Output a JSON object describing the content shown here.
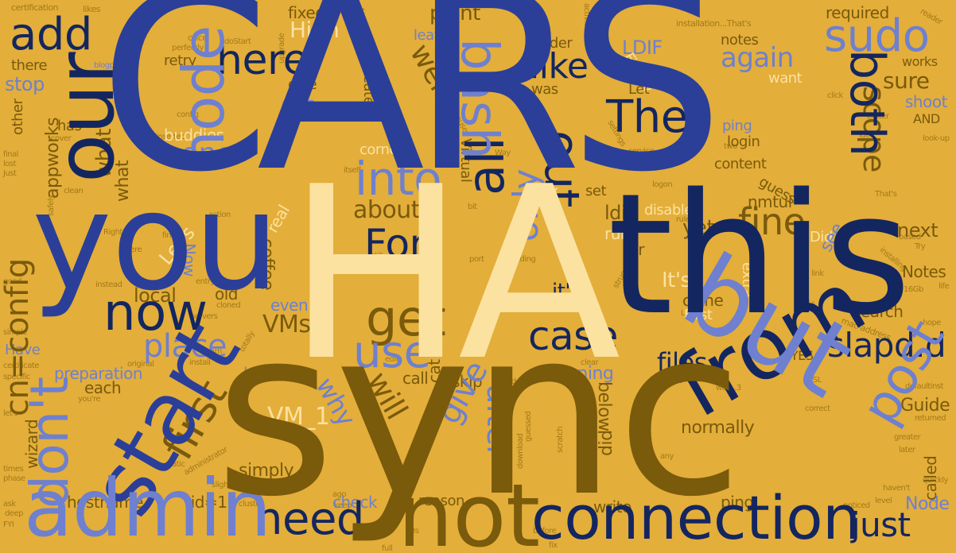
{
  "colors": {
    "background": "#E3AE3A",
    "royal_blue": "#2B3F98",
    "navy": "#142660",
    "cream": "#FBE2A0",
    "olive": "#7A5A0B",
    "periwinkle": "#6E80CF",
    "gold": "#A47A17"
  },
  "words": {
    "cars": "CARS",
    "ha": "HA",
    "sync": "sync",
    "you": "you",
    "this": "this",
    "but": "but",
    "our": "our",
    "start": "start",
    "admin": "admin",
    "from": "from",
    "connection": "connection",
    "not": "not",
    "node": "node",
    "bash": "bash",
    "post": "post",
    "dont": "don't",
    "now": "now",
    "cn_config": "cn=config",
    "get": "get",
    "use": "use",
    "slapd_d": "slapd.d",
    "the": "The",
    "both": "both",
    "sudo": "sudo",
    "add": "add",
    "here": "here",
    "into": "into",
    "for": "For",
    "all": "all",
    "out": "out",
    "scope": "scope",
    "again": "again",
    "first": "first",
    "need": "need",
    "case": "case",
    "give": "give",
    "after": "after",
    "only": "only",
    "like": "like",
    "one": "one",
    "fine": "fine",
    "just": "just",
    "place": "place",
    "vms": "VMs",
    "files": "files",
    "point": "point",
    "high": "High",
    "ldif_caps": "LDIF",
    "fixed": "fixed",
    "leave": "leave",
    "well": "well",
    "stop": "stop",
    "appworks": "appworks",
    "what": "what",
    "buddies": "buddies",
    "vm_1": "VM_1",
    "will": "will",
    "why": "why",
    "its": "It's",
    "its2": "it's",
    "about": "about",
    "yet": "yet",
    "ldif": "ldif",
    "nmtui": "nmtui",
    "next": "next",
    "see": "see",
    "notes_cap": "Notes",
    "search": "search",
    "guide": "Guide",
    "node_cap": "Node",
    "called": "called",
    "ping": "ping",
    "normally": "normally",
    "reason": "reason",
    "write": "write",
    "check": "check",
    "hostname": "hostname",
    "rid": "rid=1",
    "simply": "simply",
    "wizard": "wizard",
    "preparation": "preparation",
    "each": "each",
    "have": "Have",
    "location": "location",
    "running": "running",
    "coffee": "coffee",
    "real": "real",
    "clone": "clone",
    "extra": "extra",
    "did": "did",
    "below": "below",
    "call": "call",
    "skip": "skip",
    "cat": "cat",
    "yes": "YES",
    "sure": "sure",
    "shoot": "shoot",
    "and": "AND",
    "works": "works",
    "required": "required",
    "notes": "notes",
    "want": "want",
    "content": "content",
    "login": "login",
    "im": "I'm",
    "guess": "guess",
    "set": "set",
    "box": "Box",
    "virtual": "Virtual",
    "corner": "corner",
    "create": "create",
    "data": "data",
    "dive": "dive",
    "retry": "retry",
    "was": "was",
    "let": "Let",
    "folder": "folder",
    "finally": "Finally",
    "there": "there",
    "other": "other",
    "has": "has",
    "lets": "Let's",
    "local": "local",
    "old": "old",
    "even": "even",
    "disable": "disable",
    "run": "run",
    "far": "far",
    "did2": "Did",
    "first2": "First",
    "now2": "Now",
    "certification": "certification",
    "likes": "likes",
    "activities": "activities",
    "installation": "installation...That's",
    "once": "once",
    "dostart": "doStart",
    "perfectly": "perfectly",
    "logout": "logout",
    "reader": "reader",
    "blogpost": "blogpost",
    "config": "config",
    "because": "Because",
    "settings": "settings",
    "idea": "idea",
    "click": "click",
    "better": "better",
    "lookup": "look-up",
    "two": "two",
    "service": "service",
    "certificate": "certificate",
    "mac": "mac-address",
    "16gb": "16Gb",
    "tips": "tips",
    "hope": "hope",
    "life": "life",
    "installing": "installing",
    "try": "Try",
    "link": "link",
    "struggle": "struggle",
    "15s": "15s",
    "based": "based",
    "thats": "That's",
    "returned": "returned",
    "defaultinst": "defaultinst",
    "later": "later",
    "greater": "greater",
    "quickly": "quickly",
    "level": "level",
    "havent": "haven't",
    "noticed": "noticed",
    "correct": "correct",
    "revert": "revert",
    "cold": "cold",
    "download": "download",
    "scratch": "scratch",
    "guessed": "guessed",
    "before": "before",
    "ago": "ago",
    "keep": "keep",
    "slightly": "slightly",
    "administrator": "administrator",
    "static": "static",
    "cluster": "cluster",
    "full": "full",
    "fix": "fix",
    "30s": "30s",
    "phase": "phase",
    "times": "times",
    "ask": "ask",
    "deep": "deep",
    "fyi": "FYI",
    "good": "good",
    "simple": "simple",
    "lets2": "let's",
    "specific": "specific",
    "youre": "you're",
    "cover": "cover",
    "final": "final",
    "lost": "lost",
    "just2": "Just",
    "safely": "safely",
    "inserted": "inserted",
    "itself": "itself",
    "clean": "clean",
    "right": "Right",
    "where": "where",
    "instead": "instead",
    "action": "action",
    "find": "find",
    "entry": "entry",
    "cloned": "cloned",
    "install": "install",
    "learn": "learn",
    "original": "original",
    "edit": "edit",
    "still": "still",
    "port": "port",
    "loading": "loading",
    "totally": "totally",
    "servers": "servers",
    "bit": "bit",
    "way": "Way",
    "rule": "rule",
    "logon": "logon",
    "upgrade": "upgrade",
    "ldap": "LDAP",
    "clear": "clear",
    "any": "any",
    "well3": "well...3",
    "ssl": "SSL",
    "ok": "OK"
  }
}
